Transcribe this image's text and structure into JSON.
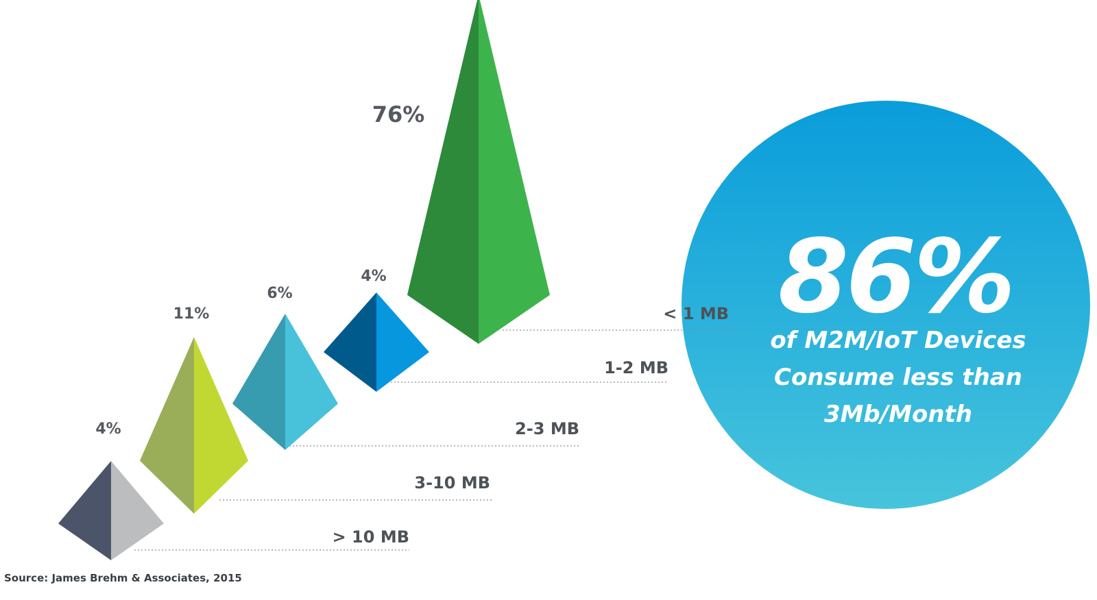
{
  "chart_data": {
    "type": "bar",
    "categories": [
      "> 10 MB",
      "3-10 MB",
      "2-3 MB",
      "1-2 MB",
      "< 1 MB"
    ],
    "values": [
      4,
      11,
      6,
      4,
      76
    ],
    "value_labels": [
      "4%",
      "11%",
      "6%",
      "4%",
      "76%"
    ],
    "series_colors": [
      {
        "dark": "#4b5468",
        "light": "#bcbdbf"
      },
      {
        "dark": "#9aae5a",
        "light": "#c1d832"
      },
      {
        "dark": "#379caf",
        "light": "#48c1da"
      },
      {
        "dark": "#005b8c",
        "light": "#0797de"
      },
      {
        "dark": "#2c8a3a",
        "light": "#3db34c"
      }
    ]
  },
  "callout": {
    "percent": "86%",
    "lines": [
      "of M2M/IoT Devices",
      "Consume less than",
      "3Mb/Month"
    ],
    "gradient_top": "#0a9ddb",
    "gradient_bottom": "#47c4dc"
  },
  "source": "Source: James Brehm & Associates, 2015"
}
